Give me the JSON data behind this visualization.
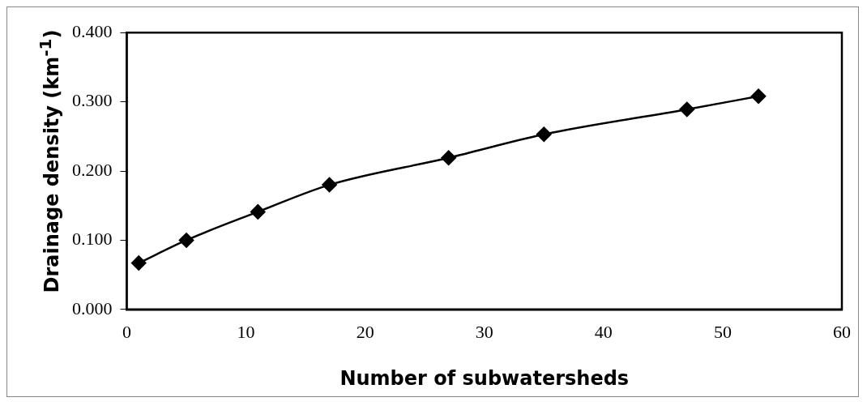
{
  "chart_data": {
    "type": "line",
    "xlabel": "Number of subwatersheds",
    "ylabel": "Drainage density (km$^{-1}$)",
    "x": [
      1,
      5,
      11,
      17,
      27,
      35,
      47,
      53
    ],
    "series": [
      {
        "color": "#000000",
        "values": [
          0.067,
          0.1,
          0.141,
          0.18,
          0.219,
          0.253,
          0.289,
          0.308
        ]
      }
    ],
    "xlim": [
      0,
      60
    ],
    "xticks": [
      0,
      10,
      20,
      30,
      40,
      50,
      60
    ],
    "ylim": [
      0,
      0.4
    ],
    "yticks": [
      {
        "value": 0,
        "label": "0.000"
      },
      {
        "value": 0.1,
        "label": "0.100"
      },
      {
        "value": 0.2,
        "label": "0.200"
      },
      {
        "value": 0.3,
        "label": "0.300"
      },
      {
        "value": 0.4,
        "label": "0.400"
      }
    ],
    "grid": false,
    "legend": false,
    "marker": "diamond",
    "line_style": "solid"
  }
}
